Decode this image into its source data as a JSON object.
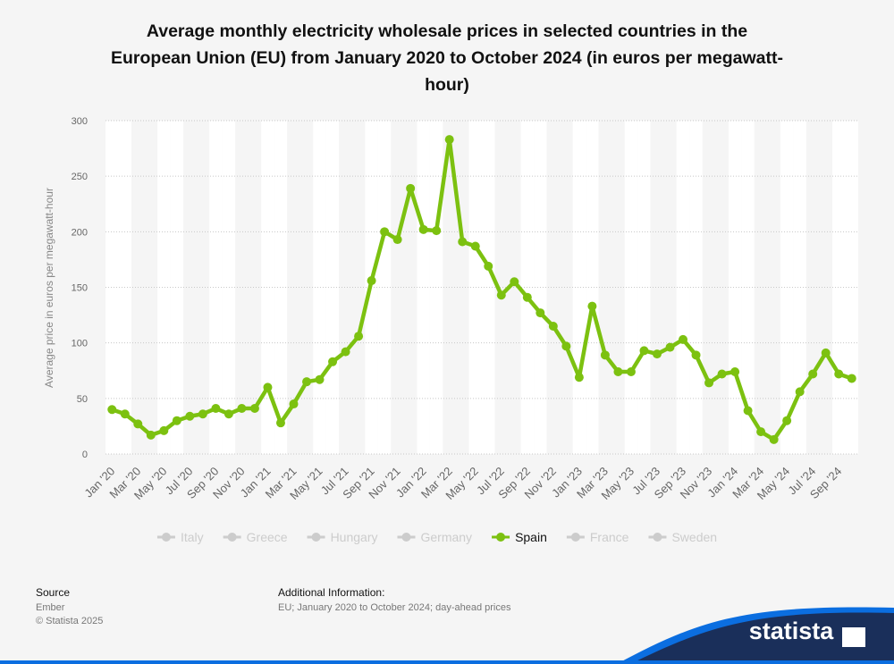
{
  "chart_data": {
    "type": "line",
    "title": "Average monthly electricity wholesale prices in selected countries in the European Union (EU) from January 2020 to October 2024 (in euros per megawatt-hour)",
    "y_label": "Average price in euros per megawatt-hour",
    "categories": [
      "Jan '20",
      null,
      "Mar '20",
      null,
      "May '20",
      null,
      "Jul '20",
      null,
      "Sep '20",
      null,
      "Nov '20",
      null,
      "Jan '21",
      null,
      "Mar '21",
      null,
      "May '21",
      null,
      "Jul '21",
      null,
      "Sep '21",
      null,
      "Nov '21",
      null,
      "Jan '22",
      null,
      "Mar '22",
      null,
      "May '22",
      null,
      "Jul '22",
      null,
      "Sep '22",
      null,
      "Nov '22",
      null,
      "Jan '23",
      null,
      "Mar '23",
      null,
      "May '23",
      null,
      "Jul '23",
      null,
      "Sep '23",
      null,
      "Nov '23",
      null,
      "Jan '24",
      null,
      "Mar '24",
      null,
      "May '24",
      null,
      "Jul '24",
      null,
      "Sep '24",
      null
    ],
    "series": [
      {
        "name": "Italy",
        "color": "#cccccc",
        "hidden": true
      },
      {
        "name": "Greece",
        "color": "#cccccc",
        "hidden": true
      },
      {
        "name": "Hungary",
        "color": "#cccccc",
        "hidden": true
      },
      {
        "name": "Germany",
        "color": "#cccccc",
        "hidden": true
      },
      {
        "name": "Spain",
        "color": "#7cc110",
        "values": [
          40,
          36,
          27,
          17,
          21,
          30,
          34,
          36,
          41,
          36,
          41,
          41,
          60,
          28,
          45,
          65,
          67,
          83,
          92,
          106,
          156,
          200,
          193,
          239,
          202,
          201,
          283,
          191,
          187,
          169,
          143,
          155,
          141,
          127,
          115,
          97,
          69,
          133,
          89,
          74,
          74,
          93,
          90,
          96,
          103,
          89,
          64,
          72,
          74,
          39,
          20,
          13,
          30,
          56,
          72,
          91,
          72,
          68
        ]
      },
      {
        "name": "France",
        "color": "#cccccc",
        "hidden": true
      },
      {
        "name": "Sweden",
        "color": "#cccccc",
        "hidden": true
      }
    ],
    "ylim": [
      0,
      300
    ],
    "yticks": [
      0,
      50,
      100,
      150,
      200,
      250,
      300
    ],
    "grid": true
  },
  "footer": {
    "source_heading": "Source",
    "source": "Ember",
    "copyright": "© Statista 2025",
    "info_heading": "Additional Information:",
    "info": "EU; January 2020 to October 2024; day-ahead prices",
    "brand": "statista"
  }
}
